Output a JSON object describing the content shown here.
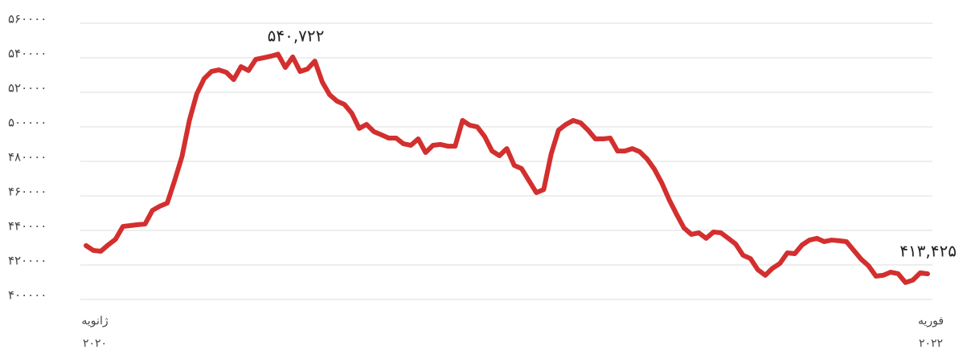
{
  "chart_data": {
    "type": "line",
    "categories": [
      "ژانویه\n۲۰۲۰",
      null,
      null,
      null,
      null,
      null,
      null,
      null,
      null,
      null,
      null,
      null,
      null,
      null,
      null,
      null,
      null,
      null,
      null,
      null,
      null,
      null,
      null,
      null,
      null,
      null,
      null,
      null,
      null,
      null,
      null,
      null,
      null,
      null,
      null,
      null,
      null,
      null,
      null,
      null,
      null,
      null,
      null,
      null,
      null,
      null,
      null,
      null,
      null,
      null,
      null,
      null,
      null,
      null,
      null,
      null,
      null,
      null,
      null,
      null,
      null,
      null,
      null,
      null,
      null,
      null,
      null,
      null,
      null,
      null,
      null,
      null,
      null,
      null,
      null,
      null,
      null,
      null,
      null,
      null,
      null,
      null,
      null,
      null,
      null,
      null,
      null,
      null,
      null,
      null,
      null,
      null,
      null,
      null,
      null,
      null,
      null,
      null,
      null,
      null,
      null,
      null,
      null,
      null,
      null,
      null,
      null,
      null,
      null,
      null,
      null,
      null,
      null,
      null,
      "فوریه\n۲۰۲۲"
    ],
    "series": [
      {
        "color": "#d32f2f",
        "values": [
          429800,
          427000,
          426500,
          430200,
          433500,
          440900,
          441400,
          441900,
          442300,
          450200,
          452600,
          454400,
          467400,
          481400,
          502300,
          517700,
          526500,
          530700,
          531600,
          530200,
          526000,
          533500,
          531200,
          537700,
          538600,
          539500,
          540722,
          533000,
          539100,
          530700,
          532100,
          536700,
          524600,
          517200,
          513500,
          511600,
          506500,
          497700,
          500000,
          495800,
          494000,
          492100,
          492100,
          488800,
          487900,
          491600,
          483700,
          487900,
          488400,
          487400,
          487400,
          502300,
          499500,
          498600,
          493000,
          484600,
          481900,
          486000,
          476300,
          474400,
          467400,
          460500,
          462300,
          482800,
          496700,
          500000,
          502300,
          500900,
          496700,
          491600,
          491600,
          492100,
          484600,
          484600,
          486000,
          484200,
          480000,
          474000,
          466000,
          456300,
          447900,
          440000,
          436300,
          437200,
          434000,
          437700,
          437200,
          434000,
          430700,
          424200,
          422300,
          415800,
          412600,
          416700,
          419500,
          425600,
          425100,
          430200,
          433000,
          434000,
          432100,
          433000,
          432600,
          432100,
          427000,
          421900,
          418100,
          412100,
          412600,
          414400,
          413500,
          408400,
          409800,
          414000,
          413425
        ]
      }
    ],
    "annotations": [
      "۵۴۰,۷۲۲",
      "۴۱۳,۴۲۵"
    ],
    "ylim": [
      400000,
      560000
    ],
    "yticks": [
      {
        "value": 400000,
        "label": "۴۰۰۰۰۰"
      },
      {
        "value": 420000,
        "label": "۴۲۰۰۰۰"
      },
      {
        "value": 440000,
        "label": "۴۴۰۰۰۰"
      },
      {
        "value": 460000,
        "label": "۴۶۰۰۰۰"
      },
      {
        "value": 480000,
        "label": "۴۸۰۰۰۰"
      },
      {
        "value": 500000,
        "label": "۵۰۰۰۰۰"
      },
      {
        "value": 520000,
        "label": "۵۲۰۰۰۰"
      },
      {
        "value": 540000,
        "label": "۵۴۰۰۰۰"
      },
      {
        "value": 560000,
        "label": "۵۶۰۰۰۰"
      }
    ],
    "grid": true
  }
}
